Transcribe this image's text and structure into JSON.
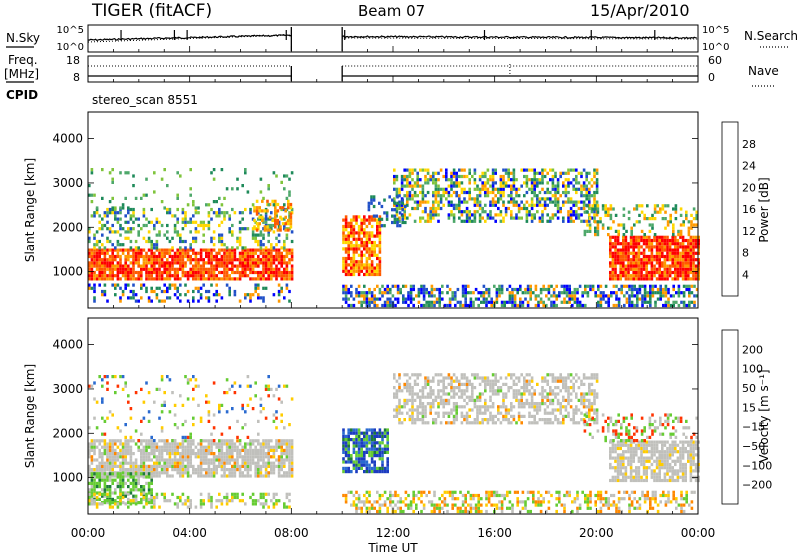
{
  "header": {
    "title": "TIGER (fitACF)",
    "beam": "Beam 07",
    "date": "15/Apr/2010"
  },
  "left_labels": {
    "nsky": "N.Sky",
    "freq": "Freq.",
    "mhz": "[MHz]",
    "cpid": "CPID"
  },
  "right_labels": {
    "nsearch": "N.Search",
    "nave": "Nave"
  },
  "cpid_text": "stereo_scan 8551",
  "x_axis": {
    "label": "Time UT",
    "ticks": [
      "00:00",
      "04:00",
      "08:00",
      "12:00",
      "16:00",
      "20:00",
      "00:00"
    ]
  },
  "colors": {
    "power_scale": [
      "#0000ff",
      "#2050c8",
      "#1e8a5a",
      "#4ea86a",
      "#7fc43c",
      "#ffd700",
      "#ff9a00",
      "#ff5a00",
      "#ff0000"
    ],
    "velocity_scale": [
      "#1c3cc0",
      "#2a6ad0",
      "#1e7a3a",
      "#66cc33",
      "#bbbbbb",
      "#c0c0c0",
      "#ffcc00",
      "#ff8800",
      "#ff3300",
      "#dd0000"
    ]
  },
  "chart_data": [
    {
      "type": "line",
      "panel": "noise",
      "xlim_hours": [
        0,
        24
      ],
      "left_ticks": [
        "10^5",
        "10^0"
      ],
      "right_ticks": [
        "10^5",
        "10^0"
      ],
      "series": [
        {
          "name": "N.Sky",
          "x": [
            0,
            1,
            2,
            3,
            4,
            5,
            6,
            7,
            8,
            8.01,
            10,
            11,
            12,
            13,
            14,
            15,
            16,
            17,
            18,
            19,
            20,
            21,
            22,
            23,
            24
          ],
          "y": [
            2,
            2.2,
            2.3,
            2.4,
            2.5,
            2.6,
            2.8,
            3,
            3.2,
            null,
            3.5,
            3.0,
            2.9,
            2.8,
            2.7,
            2.8,
            2.9,
            2.8,
            2.6,
            2.6,
            2.5,
            2.5,
            2.4,
            2.4,
            2.3
          ]
        }
      ]
    },
    {
      "type": "line",
      "panel": "frequency_nave",
      "xlim_hours": [
        0,
        24
      ],
      "left_ticks": [
        "18",
        "8"
      ],
      "right_ticks": [
        "60",
        "0"
      ]
    },
    {
      "type": "heatmap",
      "panel": "power",
      "ylabel": "Slant Range [km]",
      "colorbar_label": "Power [dB]",
      "colorbar_ticks": [
        "28",
        "24",
        "20",
        "16",
        "12",
        "8",
        "4"
      ],
      "y_ticks": [
        "4000",
        "3000",
        "2000",
        "1000"
      ],
      "ylim": [
        180,
        4600
      ],
      "xlim_hours": [
        0,
        24
      ],
      "data_gap_hours": [
        8,
        10
      ]
    },
    {
      "type": "heatmap",
      "panel": "velocity",
      "ylabel": "Slant Range [km]",
      "colorbar_label": "Velocity [m s⁻¹]",
      "colorbar_ticks": [
        "200",
        "100",
        "50",
        "15",
        "−15",
        "−50",
        "−100",
        "−200"
      ],
      "y_ticks": [
        "4000",
        "3000",
        "2000",
        "1000"
      ],
      "ylim": [
        180,
        4600
      ],
      "xlim_hours": [
        0,
        24
      ],
      "data_gap_hours": [
        8,
        10
      ]
    }
  ]
}
